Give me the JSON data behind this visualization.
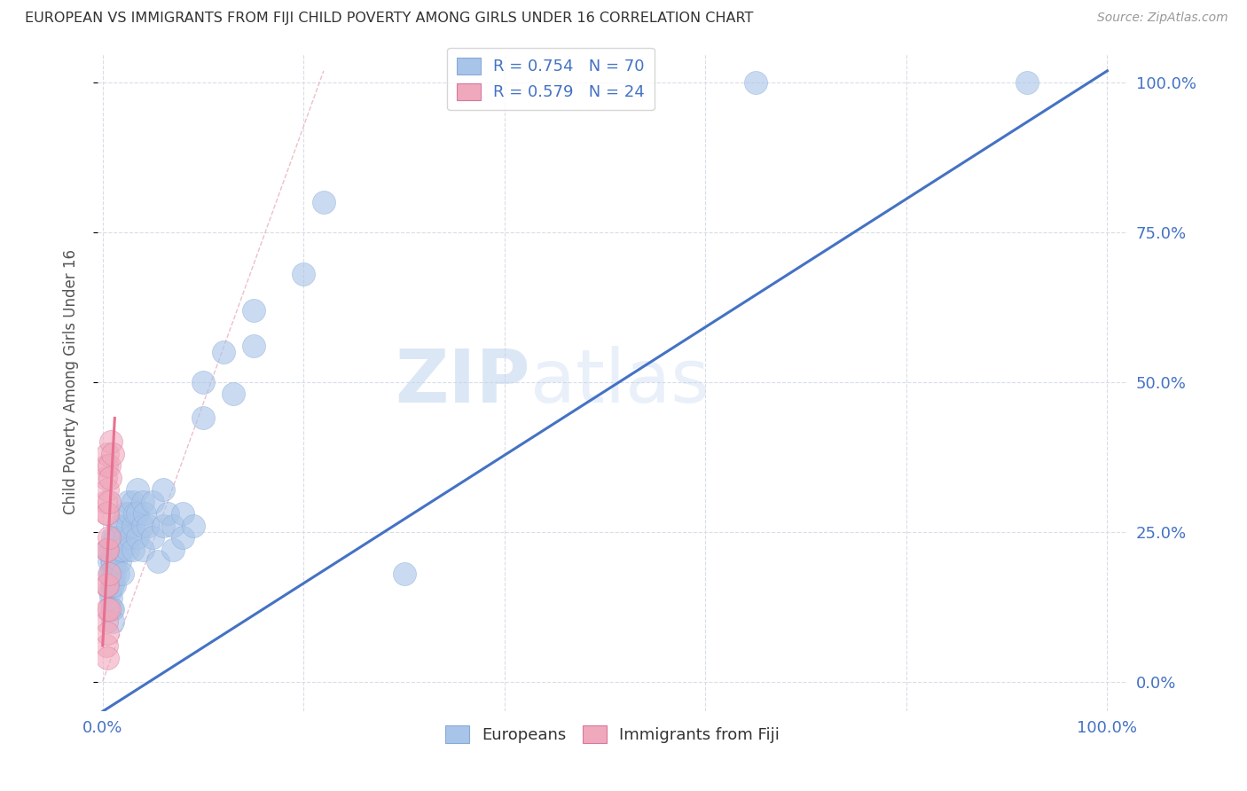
{
  "title": "EUROPEAN VS IMMIGRANTS FROM FIJI CHILD POVERTY AMONG GIRLS UNDER 16 CORRELATION CHART",
  "source": "Source: ZipAtlas.com",
  "ylabel": "Child Poverty Among Girls Under 16",
  "xlim": [
    -0.005,
    1.02
  ],
  "ylim": [
    -0.05,
    1.05
  ],
  "ytick_positions": [
    0.0,
    0.25,
    0.5,
    0.75,
    1.0
  ],
  "ytick_labels_right": [
    "0.0%",
    "25.0%",
    "50.0%",
    "75.0%",
    "100.0%"
  ],
  "xtick_positions": [
    0.0,
    1.0
  ],
  "xtick_labels": [
    "0.0%",
    "100.0%"
  ],
  "watermark_text": "ZIPatlas",
  "blue_color": "#4472c4",
  "pink_color": "#e87090",
  "blue_scatter_color": "#a8c4e8",
  "pink_scatter_color": "#f0a8bc",
  "title_color": "#333333",
  "source_color": "#999999",
  "axis_label_color": "#4472c4",
  "grid_color": "#d8dde8",
  "background_color": "#ffffff",
  "legend_R_color": "#4472c4",
  "diag_color": "#e8b0c0",
  "blue_points": [
    [
      0.005,
      0.22
    ],
    [
      0.006,
      0.2
    ],
    [
      0.007,
      0.18
    ],
    [
      0.007,
      0.15
    ],
    [
      0.008,
      0.22
    ],
    [
      0.008,
      0.18
    ],
    [
      0.008,
      0.14
    ],
    [
      0.009,
      0.2
    ],
    [
      0.009,
      0.16
    ],
    [
      0.009,
      0.12
    ],
    [
      0.01,
      0.24
    ],
    [
      0.01,
      0.2
    ],
    [
      0.01,
      0.18
    ],
    [
      0.01,
      0.16
    ],
    [
      0.01,
      0.12
    ],
    [
      0.01,
      0.1
    ],
    [
      0.012,
      0.22
    ],
    [
      0.012,
      0.18
    ],
    [
      0.012,
      0.16
    ],
    [
      0.013,
      0.24
    ],
    [
      0.013,
      0.2
    ],
    [
      0.015,
      0.26
    ],
    [
      0.015,
      0.22
    ],
    [
      0.015,
      0.18
    ],
    [
      0.016,
      0.24
    ],
    [
      0.017,
      0.2
    ],
    [
      0.018,
      0.22
    ],
    [
      0.02,
      0.26
    ],
    [
      0.02,
      0.22
    ],
    [
      0.02,
      0.18
    ],
    [
      0.022,
      0.28
    ],
    [
      0.022,
      0.24
    ],
    [
      0.025,
      0.3
    ],
    [
      0.025,
      0.26
    ],
    [
      0.025,
      0.22
    ],
    [
      0.027,
      0.28
    ],
    [
      0.028,
      0.24
    ],
    [
      0.03,
      0.3
    ],
    [
      0.03,
      0.26
    ],
    [
      0.03,
      0.22
    ],
    [
      0.032,
      0.28
    ],
    [
      0.035,
      0.32
    ],
    [
      0.035,
      0.28
    ],
    [
      0.035,
      0.24
    ],
    [
      0.04,
      0.3
    ],
    [
      0.04,
      0.26
    ],
    [
      0.04,
      0.22
    ],
    [
      0.042,
      0.28
    ],
    [
      0.045,
      0.26
    ],
    [
      0.05,
      0.3
    ],
    [
      0.05,
      0.24
    ],
    [
      0.055,
      0.2
    ],
    [
      0.06,
      0.32
    ],
    [
      0.06,
      0.26
    ],
    [
      0.065,
      0.28
    ],
    [
      0.07,
      0.26
    ],
    [
      0.07,
      0.22
    ],
    [
      0.08,
      0.28
    ],
    [
      0.08,
      0.24
    ],
    [
      0.09,
      0.26
    ],
    [
      0.1,
      0.5
    ],
    [
      0.1,
      0.44
    ],
    [
      0.12,
      0.55
    ],
    [
      0.13,
      0.48
    ],
    [
      0.15,
      0.62
    ],
    [
      0.15,
      0.56
    ],
    [
      0.2,
      0.68
    ],
    [
      0.22,
      0.8
    ],
    [
      0.3,
      0.18
    ],
    [
      0.65,
      1.0
    ],
    [
      0.92,
      1.0
    ]
  ],
  "pink_points": [
    [
      0.003,
      0.34
    ],
    [
      0.003,
      0.3
    ],
    [
      0.004,
      0.36
    ],
    [
      0.004,
      0.28
    ],
    [
      0.004,
      0.22
    ],
    [
      0.004,
      0.16
    ],
    [
      0.004,
      0.1
    ],
    [
      0.004,
      0.06
    ],
    [
      0.005,
      0.38
    ],
    [
      0.005,
      0.32
    ],
    [
      0.005,
      0.28
    ],
    [
      0.005,
      0.22
    ],
    [
      0.005,
      0.16
    ],
    [
      0.005,
      0.12
    ],
    [
      0.005,
      0.08
    ],
    [
      0.005,
      0.04
    ],
    [
      0.006,
      0.36
    ],
    [
      0.006,
      0.3
    ],
    [
      0.006,
      0.24
    ],
    [
      0.006,
      0.18
    ],
    [
      0.006,
      0.12
    ],
    [
      0.007,
      0.34
    ],
    [
      0.008,
      0.4
    ],
    [
      0.01,
      0.38
    ]
  ],
  "blue_line_x": [
    0.0,
    1.0
  ],
  "blue_line_y": [
    -0.05,
    1.02
  ],
  "pink_line_x": [
    0.0,
    0.012
  ],
  "pink_line_y": [
    0.06,
    0.44
  ],
  "diag_line_x": [
    0.0,
    0.22
  ],
  "diag_line_y": [
    0.0,
    1.02
  ]
}
